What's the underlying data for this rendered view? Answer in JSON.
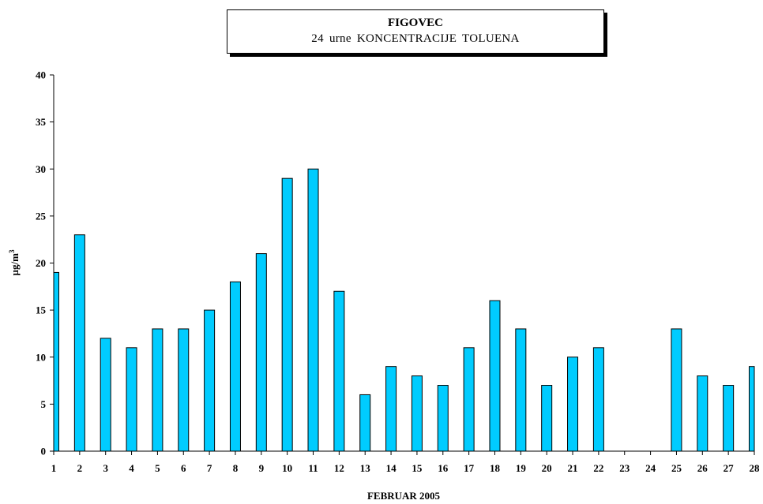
{
  "chart_data": {
    "type": "bar",
    "title": "FIGOVEC",
    "subtitle": "24 urne KONCENTRACIJE TOLUENA",
    "xlabel": "FEBRUAR 2005",
    "ylabel": "µg/m",
    "ylabel_superscript": "3",
    "categories": [
      "1",
      "2",
      "3",
      "4",
      "5",
      "6",
      "7",
      "8",
      "9",
      "10",
      "11",
      "12",
      "13",
      "14",
      "15",
      "16",
      "17",
      "18",
      "19",
      "20",
      "21",
      "22",
      "23",
      "24",
      "25",
      "26",
      "27",
      "28"
    ],
    "values": [
      19,
      23,
      12,
      11,
      13,
      13,
      15,
      18,
      21,
      29,
      30,
      17,
      6,
      9,
      8,
      7,
      11,
      16,
      13,
      7,
      10,
      11,
      null,
      null,
      13,
      8,
      7,
      9
    ],
    "ylim": [
      0,
      40
    ],
    "yticks": [
      0,
      5,
      10,
      15,
      20,
      25,
      30,
      35,
      40
    ],
    "grid": false,
    "bar_color": "#00CCFF"
  }
}
